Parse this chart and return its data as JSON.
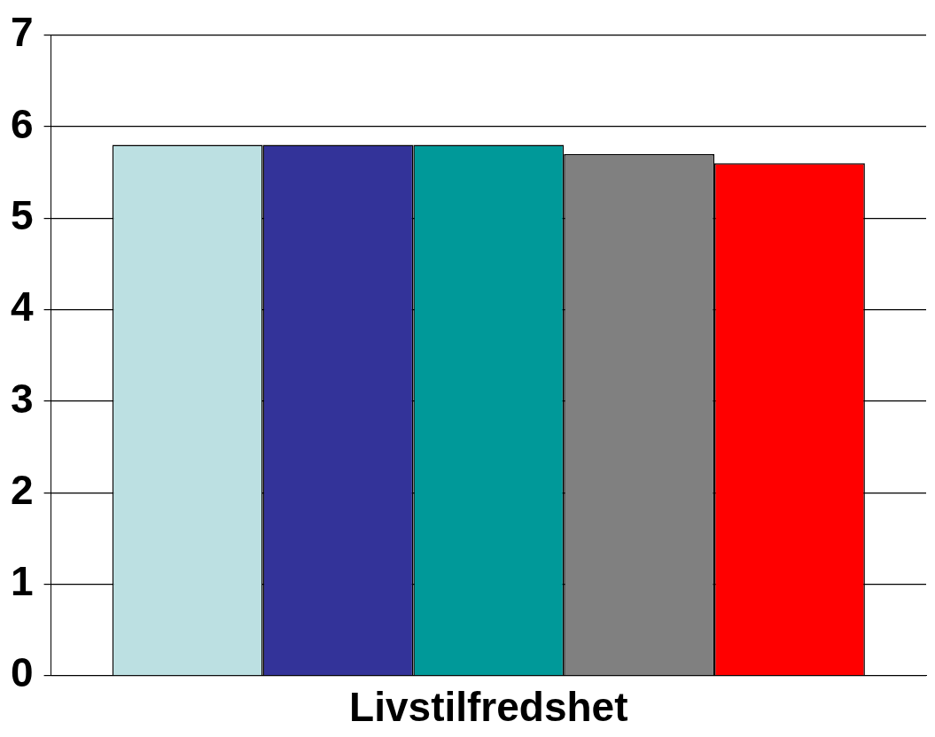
{
  "chart_data": {
    "type": "bar",
    "categories": [
      "Livstilfredshet"
    ],
    "series": [
      {
        "color": "#bce0e2",
        "values": [
          5.8
        ]
      },
      {
        "color": "#333399",
        "values": [
          5.8
        ]
      },
      {
        "color": "#009999",
        "values": [
          5.8
        ]
      },
      {
        "color": "#808080",
        "values": [
          5.7
        ]
      },
      {
        "color": "#ff0000",
        "values": [
          5.6
        ]
      }
    ],
    "ylim": [
      0,
      7
    ],
    "yticks": [
      0,
      1,
      2,
      3,
      4,
      5,
      6,
      7
    ],
    "grid": "y",
    "legend": false
  }
}
